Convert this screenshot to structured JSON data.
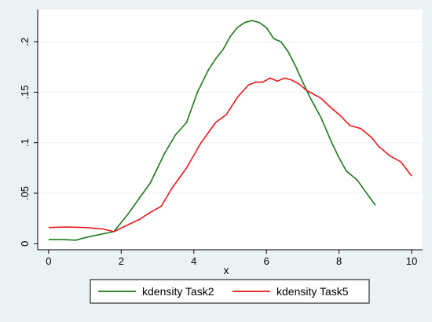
{
  "chart_data": {
    "type": "line",
    "title": "",
    "xlabel": "x",
    "ylabel": "",
    "xlim": [
      -0.3,
      10.3
    ],
    "ylim": [
      -0.006,
      0.232
    ],
    "x_ticks": [
      0,
      2,
      4,
      6,
      8,
      10
    ],
    "x_tick_labels": [
      "0",
      "2",
      "4",
      "6",
      "8",
      "10"
    ],
    "y_ticks": [
      0,
      0.05,
      0.1,
      0.15,
      0.2
    ],
    "y_tick_labels": [
      "0",
      ".05",
      ".1",
      ".15",
      ".2"
    ],
    "grid": "horizontal",
    "legend_position": "bottom",
    "colors": {
      "background": "#eaf2f3",
      "plot_background": "#ffffff",
      "grid": "#eaf2f3"
    },
    "series": [
      {
        "name": "kdensity Task2",
        "color": "#1a7a1a",
        "points": [
          [
            0,
            0.004
          ],
          [
            0.4,
            0.004
          ],
          [
            0.75,
            0.0035
          ],
          [
            1.0,
            0.006
          ],
          [
            1.4,
            0.009
          ],
          [
            1.8,
            0.012
          ],
          [
            2.2,
            0.03
          ],
          [
            2.5,
            0.045
          ],
          [
            2.8,
            0.06
          ],
          [
            3.2,
            0.09
          ],
          [
            3.5,
            0.108
          ],
          [
            3.8,
            0.12
          ],
          [
            4.1,
            0.15
          ],
          [
            4.4,
            0.172
          ],
          [
            4.6,
            0.183
          ],
          [
            4.8,
            0.192
          ],
          [
            5.0,
            0.205
          ],
          [
            5.2,
            0.214
          ],
          [
            5.4,
            0.219
          ],
          [
            5.6,
            0.221
          ],
          [
            5.8,
            0.219
          ],
          [
            6.0,
            0.214
          ],
          [
            6.2,
            0.203
          ],
          [
            6.4,
            0.2
          ],
          [
            6.6,
            0.19
          ],
          [
            6.8,
            0.176
          ],
          [
            7.0,
            0.16
          ],
          [
            7.2,
            0.145
          ],
          [
            7.5,
            0.125
          ],
          [
            7.8,
            0.1
          ],
          [
            8.0,
            0.085
          ],
          [
            8.2,
            0.072
          ],
          [
            8.5,
            0.063
          ],
          [
            8.8,
            0.048
          ],
          [
            9.0,
            0.038
          ]
        ]
      },
      {
        "name": "kdensity Task5",
        "color": "#e8191b",
        "points": [
          [
            0,
            0.016
          ],
          [
            0.5,
            0.0165
          ],
          [
            1.0,
            0.016
          ],
          [
            1.5,
            0.0145
          ],
          [
            1.8,
            0.012
          ],
          [
            2.2,
            0.019
          ],
          [
            2.5,
            0.024
          ],
          [
            2.8,
            0.031
          ],
          [
            3.1,
            0.037
          ],
          [
            3.4,
            0.055
          ],
          [
            3.8,
            0.075
          ],
          [
            4.2,
            0.1
          ],
          [
            4.6,
            0.12
          ],
          [
            4.9,
            0.128
          ],
          [
            5.2,
            0.145
          ],
          [
            5.5,
            0.157
          ],
          [
            5.7,
            0.16
          ],
          [
            5.9,
            0.16
          ],
          [
            6.1,
            0.164
          ],
          [
            6.3,
            0.161
          ],
          [
            6.5,
            0.164
          ],
          [
            6.7,
            0.162
          ],
          [
            6.9,
            0.158
          ],
          [
            7.1,
            0.152
          ],
          [
            7.3,
            0.148
          ],
          [
            7.5,
            0.144
          ],
          [
            7.8,
            0.134
          ],
          [
            8.0,
            0.128
          ],
          [
            8.3,
            0.117
          ],
          [
            8.6,
            0.114
          ],
          [
            8.9,
            0.105
          ],
          [
            9.1,
            0.096
          ],
          [
            9.4,
            0.087
          ],
          [
            9.7,
            0.081
          ],
          [
            10.0,
            0.067
          ]
        ]
      }
    ]
  }
}
